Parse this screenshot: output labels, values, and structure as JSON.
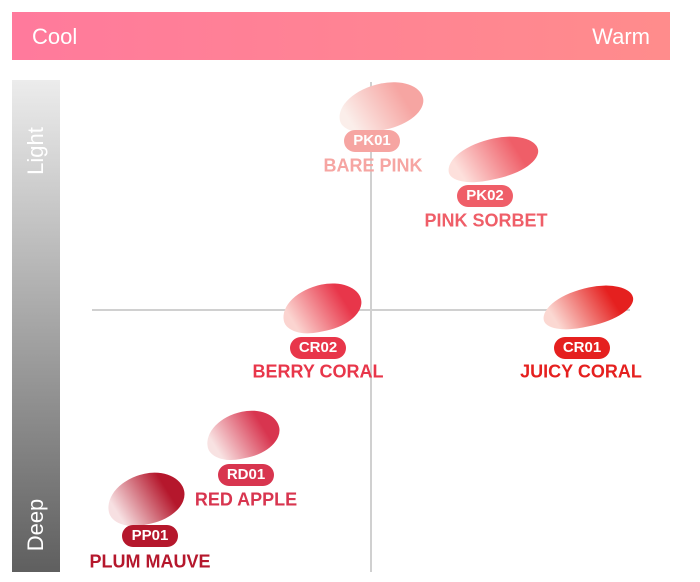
{
  "header": {
    "left_label": "Cool",
    "right_label": "Warm"
  },
  "side": {
    "top_label": "Light",
    "bottom_label": "Deep"
  },
  "products": [
    {
      "code": "PK01",
      "name": "BARE PINK",
      "color": "#f6a5a2"
    },
    {
      "code": "PK02",
      "name": "PINK SORBET",
      "color": "#ef5e68"
    },
    {
      "code": "CR02",
      "name": "BERRY CORAL",
      "color": "#e8364a"
    },
    {
      "code": "CR01",
      "name": "JUICY CORAL",
      "color": "#e5201f"
    },
    {
      "code": "RD01",
      "name": "RED APPLE",
      "color": "#d8354f"
    },
    {
      "code": "PP01",
      "name": "PLUM MAUVE",
      "color": "#b5172c"
    }
  ]
}
